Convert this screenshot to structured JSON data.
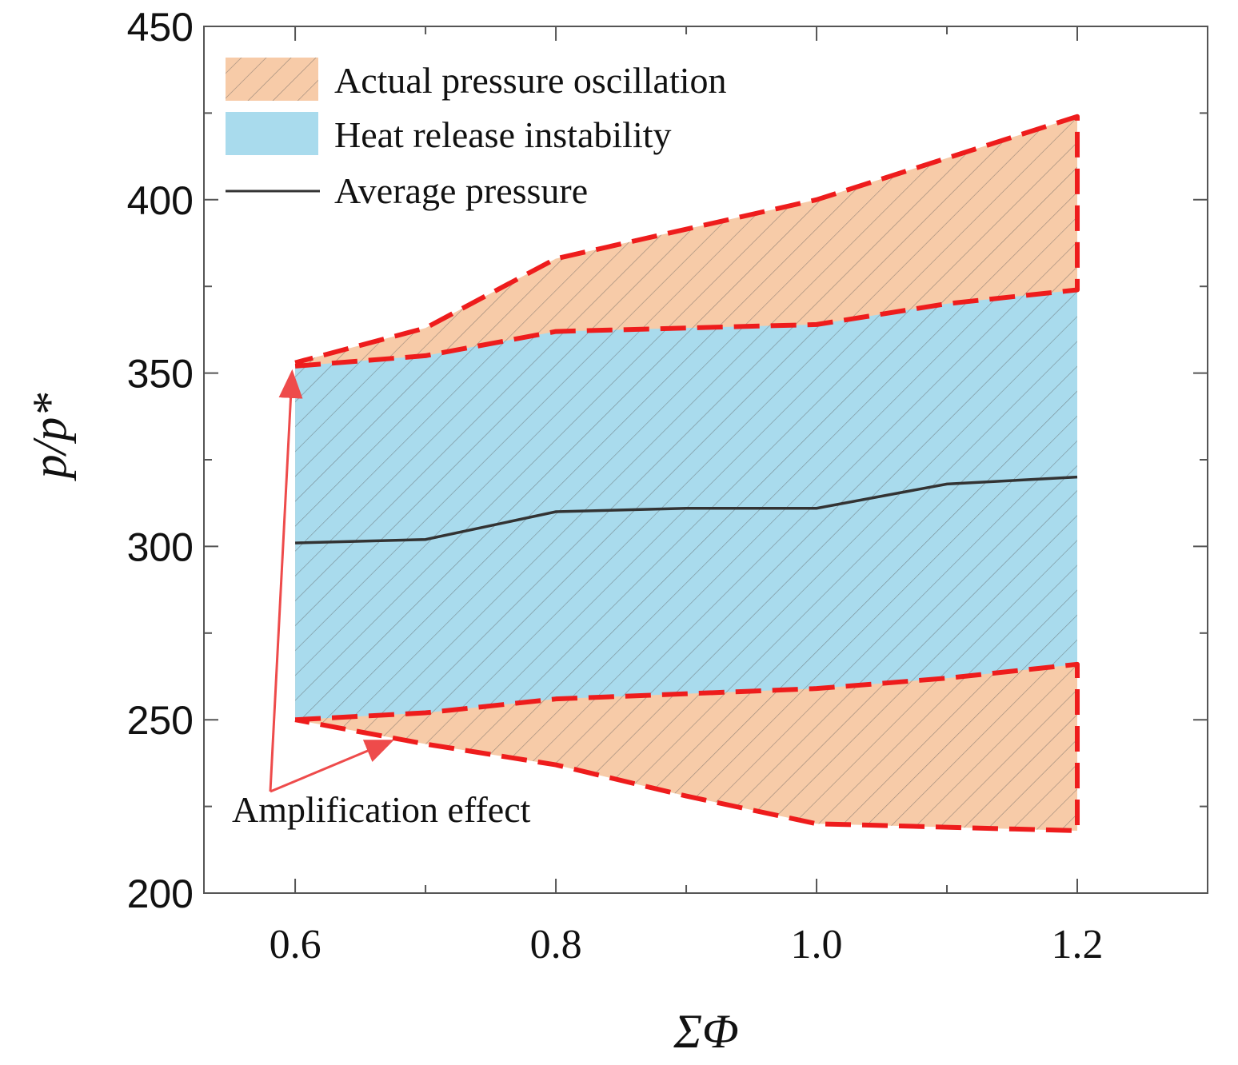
{
  "chart_data": {
    "type": "area",
    "title": "",
    "xlabel": "ΣΦ",
    "ylabel": "p/p*",
    "xlim": [
      0.53,
      1.3
    ],
    "ylim": [
      200,
      450
    ],
    "x_ticks": [
      0.6,
      0.8,
      1.0,
      1.2
    ],
    "x_tick_labels": [
      "0.6",
      "0.8",
      "1.0",
      "1.2"
    ],
    "y_ticks": [
      200,
      250,
      300,
      350,
      400,
      450
    ],
    "y_tick_labels": [
      "200",
      "250",
      "300",
      "350",
      "400",
      "450"
    ],
    "y_minor_ticks": [
      225,
      275,
      325,
      375,
      425
    ],
    "grid": false,
    "legend_position": "top-left",
    "series": [
      {
        "name": "Actual pressure oscillation",
        "kind": "band-hatched",
        "color": "#f7cba8",
        "x_upper": [
          0.6,
          0.7,
          0.8,
          1.0,
          1.2
        ],
        "upper": [
          353,
          363,
          383,
          400,
          424
        ],
        "x_lower": [
          0.6,
          0.7,
          0.8,
          0.9,
          1.0,
          1.2
        ],
        "lower": [
          250,
          243,
          237,
          228,
          220,
          218
        ]
      },
      {
        "name": "Heat release instability",
        "kind": "band",
        "color": "#a9dbed",
        "x": [
          0.6,
          0.7,
          0.8,
          1.0,
          1.1,
          1.2
        ],
        "upper": [
          352,
          355,
          362,
          364,
          370,
          374
        ],
        "lower": [
          250,
          252,
          256,
          259,
          262,
          266
        ]
      },
      {
        "name": "Average pressure",
        "kind": "line",
        "color": "#333333",
        "x": [
          0.6,
          0.7,
          0.8,
          0.9,
          1.0,
          1.1,
          1.2
        ],
        "values": [
          301,
          302,
          310,
          311,
          311,
          318,
          320
        ]
      }
    ],
    "dashed_outline_color": "#ee1c1c",
    "annotations": [
      {
        "text": "Amplification effect",
        "arrow_targets": [
          [
            0.6,
            352
          ],
          [
            0.675,
            246
          ]
        ]
      }
    ]
  }
}
